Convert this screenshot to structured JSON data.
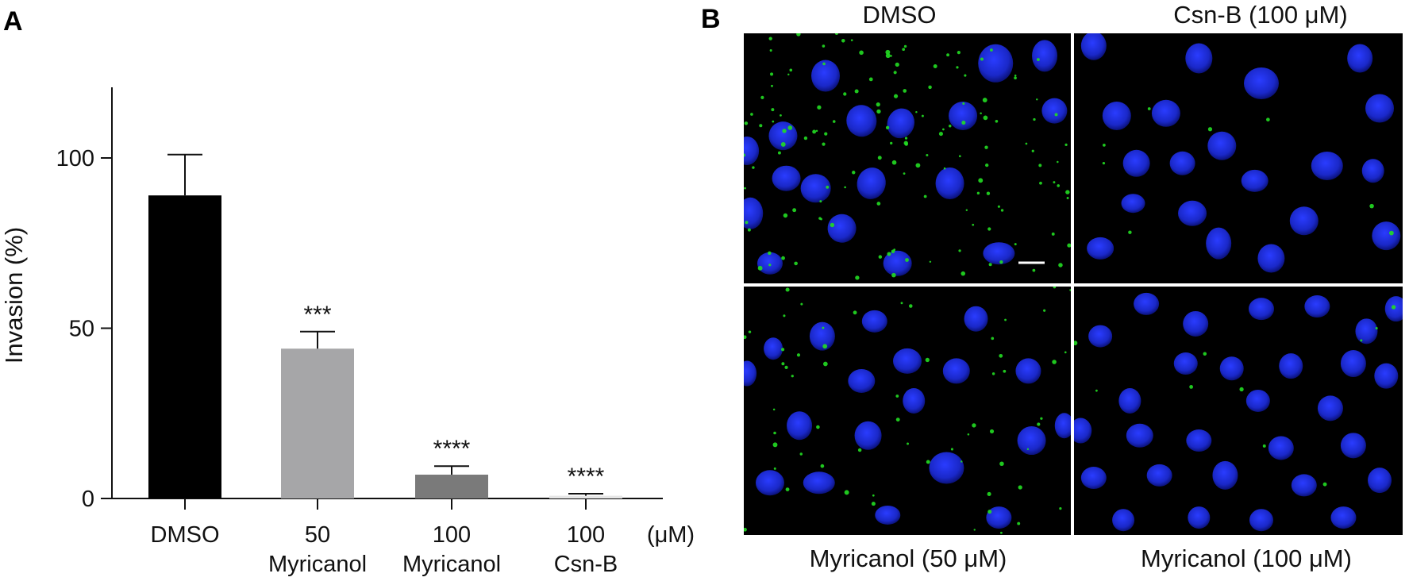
{
  "panels": {
    "a_label": "A",
    "b_label": "B"
  },
  "chart_data": {
    "type": "bar",
    "ylabel": "Invasion (%)",
    "ylim": [
      0,
      120
    ],
    "yticks": [
      0,
      50,
      100
    ],
    "unit_label": "(μM)",
    "categories": [
      {
        "line1": "DMSO",
        "line2": ""
      },
      {
        "line1": "50",
        "line2": "Myricanol"
      },
      {
        "line1": "100",
        "line2": "Myricanol"
      },
      {
        "line1": "100",
        "line2": "Csn-B"
      }
    ],
    "values": [
      89,
      44,
      7,
      0.8
    ],
    "errors": [
      12,
      5,
      2.5,
      0.6
    ],
    "significance": [
      "",
      "***",
      "****",
      "****"
    ],
    "colors": [
      "#000000",
      "#a6a6a8",
      "#7a7a7a",
      "#e6e6e6"
    ]
  },
  "micrographs": {
    "titles": [
      "DMSO",
      "Csn-B (100 μM)",
      "Myricanol (50 μM)",
      "Myricanol (100 μM)"
    ],
    "nucleus_color": "#1f2fd6",
    "puncta_color": "#22dd22"
  }
}
